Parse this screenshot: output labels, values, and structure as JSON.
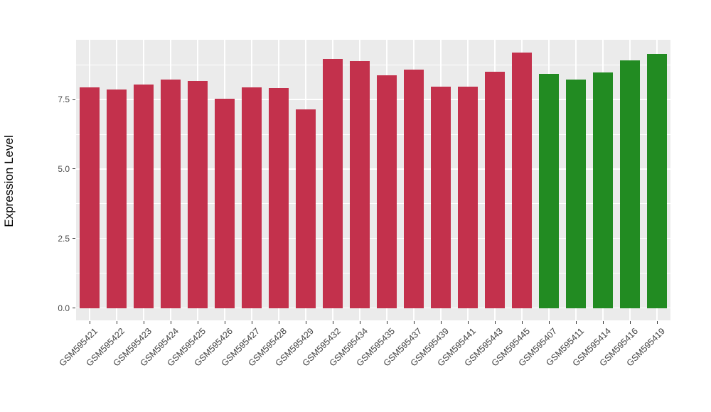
{
  "chart_data": {
    "type": "bar",
    "title": "",
    "xlabel": "",
    "ylabel": "Expression Level",
    "categories": [
      "GSM595421",
      "GSM595422",
      "GSM595423",
      "GSM595424",
      "GSM595425",
      "GSM595426",
      "GSM595427",
      "GSM595428",
      "GSM595429",
      "GSM595432",
      "GSM595434",
      "GSM595435",
      "GSM595437",
      "GSM595439",
      "GSM595441",
      "GSM595443",
      "GSM595445",
      "GSM595407",
      "GSM595411",
      "GSM595414",
      "GSM595416",
      "GSM595419"
    ],
    "values": [
      7.95,
      7.85,
      8.05,
      8.22,
      8.17,
      7.52,
      7.93,
      7.92,
      7.14,
      8.95,
      8.89,
      8.38,
      8.58,
      7.97,
      7.97,
      8.5,
      9.19,
      8.43,
      8.22,
      8.48,
      8.9,
      9.13
    ],
    "groups": [
      "red",
      "red",
      "red",
      "red",
      "red",
      "red",
      "red",
      "red",
      "red",
      "red",
      "red",
      "red",
      "red",
      "red",
      "red",
      "red",
      "red",
      "green",
      "green",
      "green",
      "green",
      "green"
    ],
    "palette": {
      "red": "#C3314C",
      "green": "#228B22"
    },
    "ylim": [
      0,
      9.65
    ],
    "yticks": [
      {
        "value": 0.0,
        "label": "0.0"
      },
      {
        "value": 2.5,
        "label": "2.5"
      },
      {
        "value": 5.0,
        "label": "5.0"
      },
      {
        "value": 7.5,
        "label": "7.5"
      }
    ],
    "minor_ticks": [
      1.25,
      3.75,
      6.25,
      8.75
    ],
    "x_tick_rotation_deg": 45,
    "legend": "none",
    "colors": {
      "panel_background": "#EBEBEB",
      "gridline": "#FFFFFF",
      "tick_label": "#4D4D4D",
      "tick_mark": "#333333",
      "axis_title": "#000000",
      "figure_background": "#FFFFFF"
    }
  }
}
